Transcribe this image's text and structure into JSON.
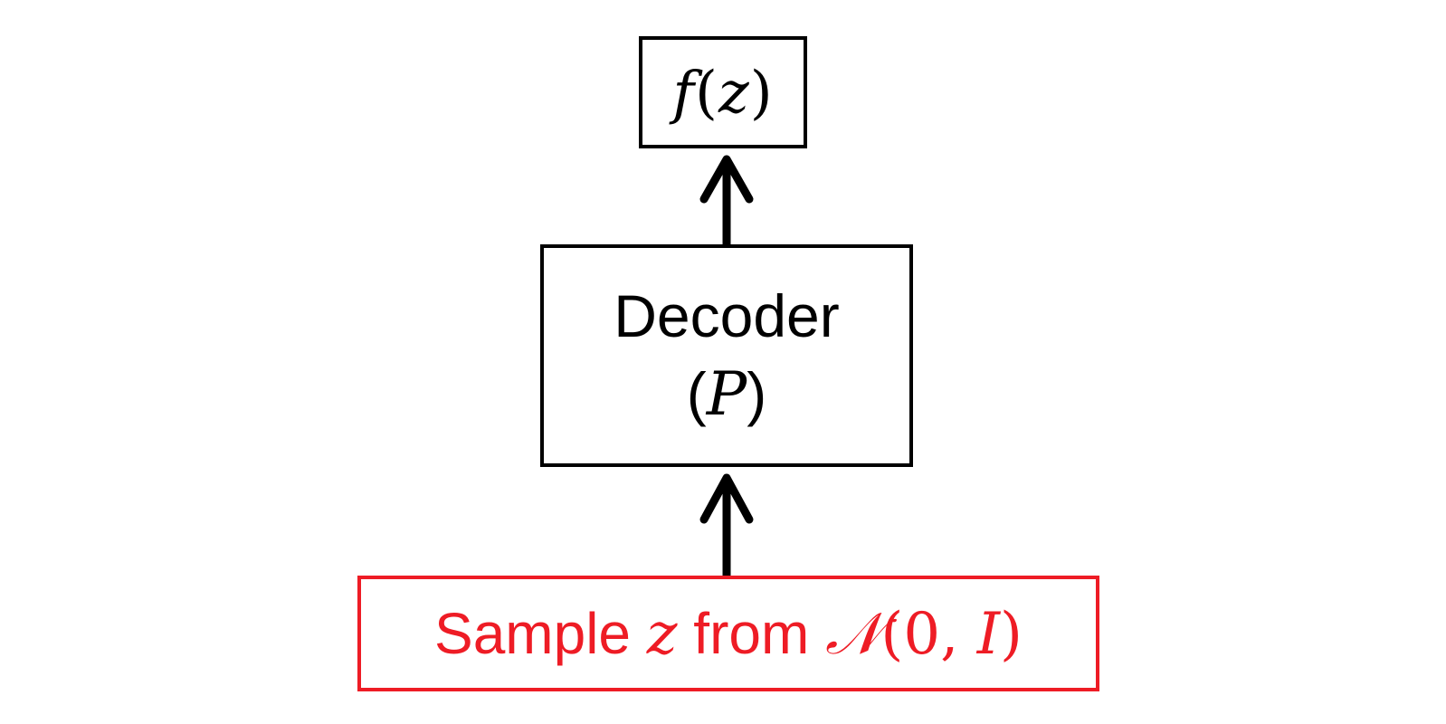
{
  "output": {
    "func": "f",
    "open": "(",
    "var": "z",
    "close": ")"
  },
  "decoder": {
    "label": "Decoder",
    "symbol_open": "(",
    "symbol": "P",
    "symbol_close": ")"
  },
  "sample": {
    "prefix": "Sample",
    "var": "z",
    "middle": "from",
    "dist": "𝒩",
    "params_open": "(",
    "params_zero": "0",
    "params_sep": ", ",
    "params_I": "I",
    "params_close": ")"
  },
  "colors": {
    "stroke": "#000000",
    "highlight": "#ee1c25"
  }
}
